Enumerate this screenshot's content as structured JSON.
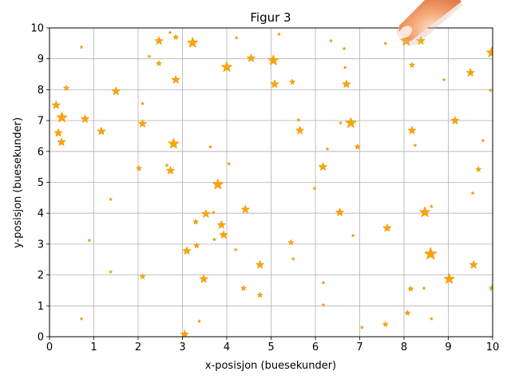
{
  "chart_data": {
    "type": "scatter",
    "title": "Figur 3",
    "xlabel": "x-posisjon (buesekunder)",
    "ylabel": "y-posisjon (buesekunder)",
    "xlim": [
      0,
      10
    ],
    "ylim": [
      0,
      10
    ],
    "xticks": [
      "0",
      "1",
      "2",
      "3",
      "4",
      "5",
      "6",
      "7",
      "8",
      "9",
      "10"
    ],
    "yticks": [
      "0",
      "1",
      "2",
      "3",
      "4",
      "5",
      "6",
      "7",
      "8",
      "9",
      "10"
    ],
    "grid": true,
    "marker": "star",
    "color": "#FFA500",
    "edge_color": "#E8960A",
    "points": [
      {
        "x": 0.15,
        "y": 7.5,
        "size": 3
      },
      {
        "x": 0.2,
        "y": 6.6,
        "size": 3
      },
      {
        "x": 0.28,
        "y": 7.1,
        "size": 4
      },
      {
        "x": 0.27,
        "y": 6.3,
        "size": 3
      },
      {
        "x": 0.38,
        "y": 8.05,
        "size": 2
      },
      {
        "x": 0.72,
        "y": 9.38,
        "size": 1
      },
      {
        "x": 0.8,
        "y": 7.05,
        "size": 3
      },
      {
        "x": 0.72,
        "y": 0.58,
        "size": 1
      },
      {
        "x": 0.9,
        "y": 3.12,
        "size": 1
      },
      {
        "x": 1.17,
        "y": 6.65,
        "size": 3
      },
      {
        "x": 1.38,
        "y": 4.45,
        "size": 1
      },
      {
        "x": 1.38,
        "y": 2.1,
        "size": 1
      },
      {
        "x": 1.5,
        "y": 7.95,
        "size": 3
      },
      {
        "x": 2.02,
        "y": 5.45,
        "size": 2
      },
      {
        "x": 2.1,
        "y": 7.55,
        "size": 1
      },
      {
        "x": 2.1,
        "y": 6.9,
        "size": 3
      },
      {
        "x": 2.1,
        "y": 1.95,
        "size": 2
      },
      {
        "x": 2.25,
        "y": 9.08,
        "size": 1
      },
      {
        "x": 2.47,
        "y": 9.58,
        "size": 3
      },
      {
        "x": 2.47,
        "y": 8.85,
        "size": 2
      },
      {
        "x": 2.65,
        "y": 5.55,
        "size": 1
      },
      {
        "x": 2.72,
        "y": 9.85,
        "size": 1
      },
      {
        "x": 2.73,
        "y": 5.38,
        "size": 3
      },
      {
        "x": 2.8,
        "y": 6.25,
        "size": 4
      },
      {
        "x": 2.85,
        "y": 9.7,
        "size": 2
      },
      {
        "x": 2.85,
        "y": 8.32,
        "size": 3
      },
      {
        "x": 3.05,
        "y": 0.08,
        "size": 3
      },
      {
        "x": 3.1,
        "y": 2.78,
        "size": 3
      },
      {
        "x": 3.23,
        "y": 9.52,
        "size": 4
      },
      {
        "x": 3.3,
        "y": 3.72,
        "size": 2
      },
      {
        "x": 3.32,
        "y": 2.95,
        "size": 2
      },
      {
        "x": 3.38,
        "y": 0.5,
        "size": 1
      },
      {
        "x": 3.48,
        "y": 1.87,
        "size": 3
      },
      {
        "x": 3.53,
        "y": 3.98,
        "size": 3
      },
      {
        "x": 3.63,
        "y": 6.15,
        "size": 1
      },
      {
        "x": 3.7,
        "y": 4.02,
        "size": 1
      },
      {
        "x": 3.72,
        "y": 3.15,
        "size": 1
      },
      {
        "x": 3.8,
        "y": 4.93,
        "size": 4
      },
      {
        "x": 3.88,
        "y": 3.62,
        "size": 3
      },
      {
        "x": 3.93,
        "y": 3.3,
        "size": 3
      },
      {
        "x": 4.0,
        "y": 8.73,
        "size": 4
      },
      {
        "x": 4.05,
        "y": 5.6,
        "size": 1
      },
      {
        "x": 4.22,
        "y": 9.68,
        "size": 1
      },
      {
        "x": 4.2,
        "y": 2.82,
        "size": 1
      },
      {
        "x": 4.38,
        "y": 1.57,
        "size": 2
      },
      {
        "x": 4.42,
        "y": 4.12,
        "size": 3
      },
      {
        "x": 4.55,
        "y": 9.02,
        "size": 3
      },
      {
        "x": 4.75,
        "y": 2.33,
        "size": 3
      },
      {
        "x": 4.75,
        "y": 1.35,
        "size": 2
      },
      {
        "x": 5.05,
        "y": 8.95,
        "size": 4
      },
      {
        "x": 5.08,
        "y": 8.18,
        "size": 3
      },
      {
        "x": 5.18,
        "y": 9.8,
        "size": 1
      },
      {
        "x": 5.45,
        "y": 3.05,
        "size": 2
      },
      {
        "x": 5.48,
        "y": 8.25,
        "size": 2
      },
      {
        "x": 5.5,
        "y": 2.52,
        "size": 1
      },
      {
        "x": 5.62,
        "y": 7.02,
        "size": 1
      },
      {
        "x": 5.65,
        "y": 6.68,
        "size": 3
      },
      {
        "x": 5.98,
        "y": 4.8,
        "size": 1
      },
      {
        "x": 6.17,
        "y": 5.5,
        "size": 3
      },
      {
        "x": 6.18,
        "y": 1.75,
        "size": 1
      },
      {
        "x": 6.18,
        "y": 1.03,
        "size": 1
      },
      {
        "x": 6.27,
        "y": 6.08,
        "size": 1
      },
      {
        "x": 6.35,
        "y": 9.58,
        "size": 1
      },
      {
        "x": 6.55,
        "y": 4.03,
        "size": 3
      },
      {
        "x": 6.57,
        "y": 6.92,
        "size": 1
      },
      {
        "x": 6.65,
        "y": 9.33,
        "size": 1
      },
      {
        "x": 6.67,
        "y": 8.72,
        "size": 1
      },
      {
        "x": 6.7,
        "y": 8.18,
        "size": 3
      },
      {
        "x": 6.8,
        "y": 6.92,
        "size": 4
      },
      {
        "x": 6.85,
        "y": 3.28,
        "size": 1
      },
      {
        "x": 6.95,
        "y": 6.15,
        "size": 2
      },
      {
        "x": 7.05,
        "y": 0.3,
        "size": 1
      },
      {
        "x": 7.58,
        "y": 9.5,
        "size": 1
      },
      {
        "x": 7.58,
        "y": 0.4,
        "size": 2
      },
      {
        "x": 7.62,
        "y": 3.52,
        "size": 3
      },
      {
        "x": 8.05,
        "y": 9.58,
        "size": 4
      },
      {
        "x": 8.08,
        "y": 0.77,
        "size": 2
      },
      {
        "x": 8.15,
        "y": 1.55,
        "size": 2
      },
      {
        "x": 8.18,
        "y": 8.8,
        "size": 2
      },
      {
        "x": 8.18,
        "y": 6.68,
        "size": 3
      },
      {
        "x": 8.25,
        "y": 6.2,
        "size": 1
      },
      {
        "x": 8.38,
        "y": 9.58,
        "size": 3
      },
      {
        "x": 8.45,
        "y": 1.57,
        "size": 1
      },
      {
        "x": 8.47,
        "y": 4.03,
        "size": 4
      },
      {
        "x": 8.6,
        "y": 2.68,
        "size": 5
      },
      {
        "x": 8.62,
        "y": 4.22,
        "size": 1
      },
      {
        "x": 8.62,
        "y": 0.58,
        "size": 1
      },
      {
        "x": 8.9,
        "y": 8.32,
        "size": 1
      },
      {
        "x": 9.02,
        "y": 1.87,
        "size": 4
      },
      {
        "x": 9.15,
        "y": 7.0,
        "size": 3
      },
      {
        "x": 9.5,
        "y": 8.55,
        "size": 3
      },
      {
        "x": 9.55,
        "y": 4.65,
        "size": 1
      },
      {
        "x": 9.57,
        "y": 2.33,
        "size": 3
      },
      {
        "x": 9.68,
        "y": 5.42,
        "size": 2
      },
      {
        "x": 9.78,
        "y": 6.35,
        "size": 1
      },
      {
        "x": 9.95,
        "y": 7.98,
        "size": 1
      },
      {
        "x": 9.98,
        "y": 9.2,
        "size": 4
      },
      {
        "x": 9.98,
        "y": 1.57,
        "size": 2
      }
    ]
  }
}
